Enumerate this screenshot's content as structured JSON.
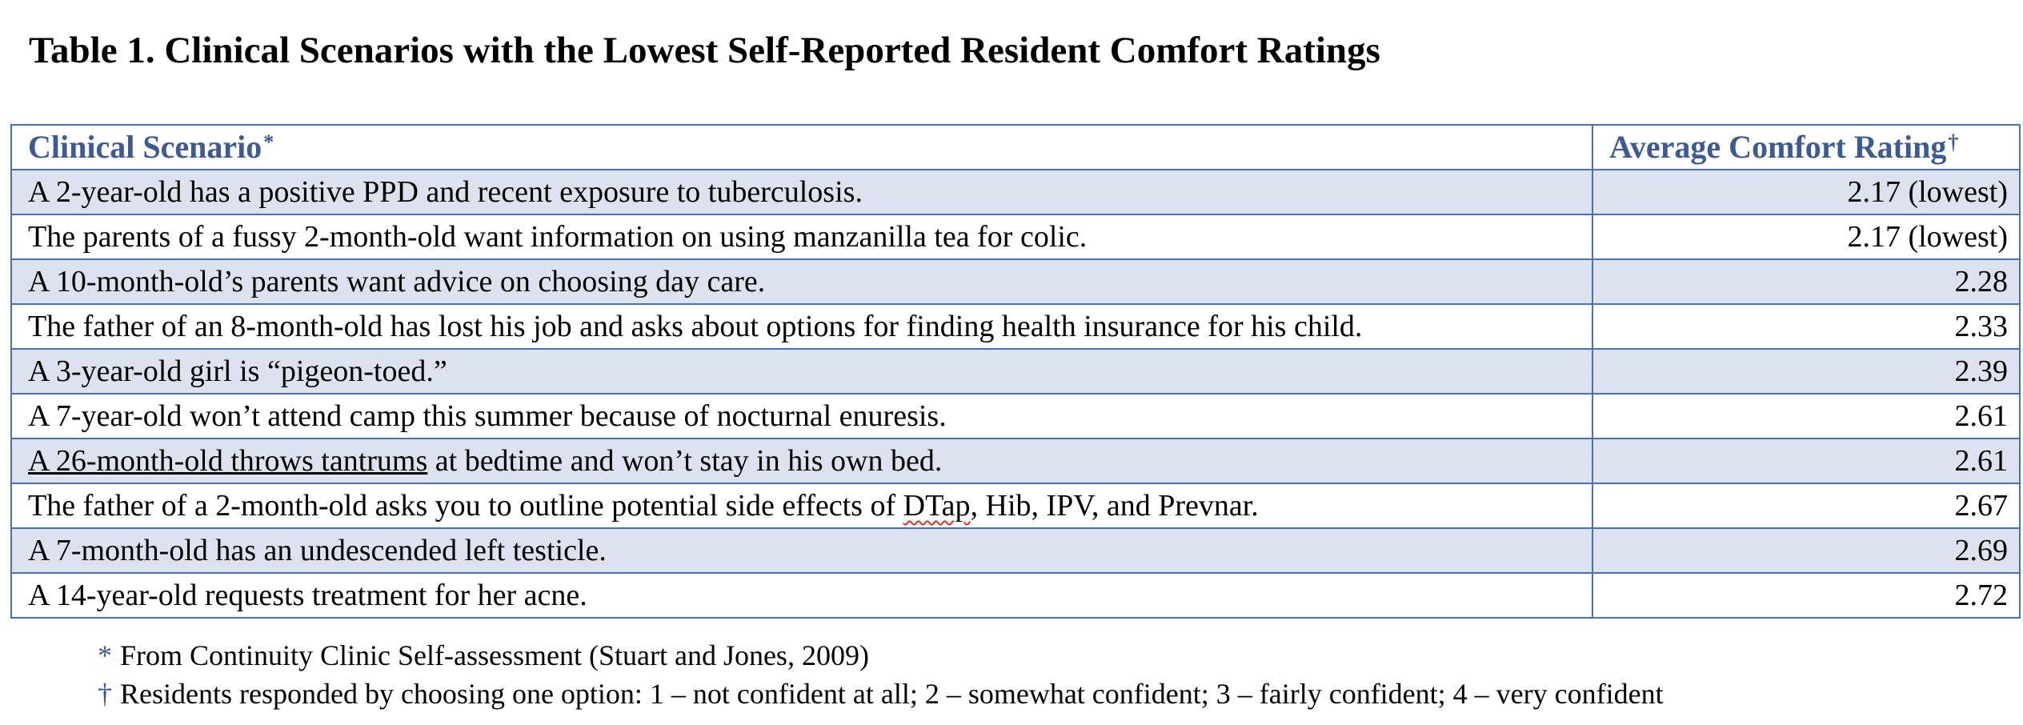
{
  "title": "Table 1. Clinical Scenarios with the Lowest Self-Reported Resident Comfort Ratings",
  "table": {
    "headers": {
      "scenario": "Clinical Scenario",
      "scenario_mark": "*",
      "rating": "Average Comfort Rating",
      "rating_mark": "†"
    },
    "rows": [
      {
        "scenario": "A 2-year-old has a positive PPD and recent exposure to tuberculosis.",
        "rating": "2.17 (lowest)"
      },
      {
        "scenario": "The parents of a fussy 2-month-old want information on using manzanilla tea for colic.",
        "rating": "2.17 (lowest)"
      },
      {
        "scenario": "A 10-month-old’s parents want advice on choosing day care.",
        "rating": "2.28"
      },
      {
        "scenario": "The father of an 8-month-old has lost his job and asks about options for finding health insurance for his child.",
        "rating": "2.33"
      },
      {
        "scenario": "A 3-year-old girl is “pigeon-toed.”",
        "rating": "2.39"
      },
      {
        "scenario": "A 7-year-old won’t attend camp this summer because of nocturnal enuresis.",
        "rating": "2.61"
      },
      {
        "scenario_a": "A 26-month-old throws tantrums",
        "scenario_b": " at bedtime and won’t stay in his own bed.",
        "rating": "2.61"
      },
      {
        "scenario_a": "The father of a 2-month-old asks you to outline potential side effects of ",
        "scenario_b": "DTap",
        "scenario_c": ", Hib, IPV, and Prevnar.",
        "rating": "2.67"
      },
      {
        "scenario": "A 7-month-old has an undescended left testicle.",
        "rating": "2.69"
      },
      {
        "scenario": "A 14-year-old requests treatment for her acne.",
        "rating": "2.72"
      }
    ]
  },
  "notes": [
    {
      "mark": "*",
      "text": "From Continuity Clinic Self-assessment (Stuart and Jones, 2009)"
    },
    {
      "mark": "†",
      "text": "Residents responded by choosing one option: 1 – not confident at all; 2 – somewhat confident; 3 – fairly confident; 4 – very confident"
    }
  ]
}
